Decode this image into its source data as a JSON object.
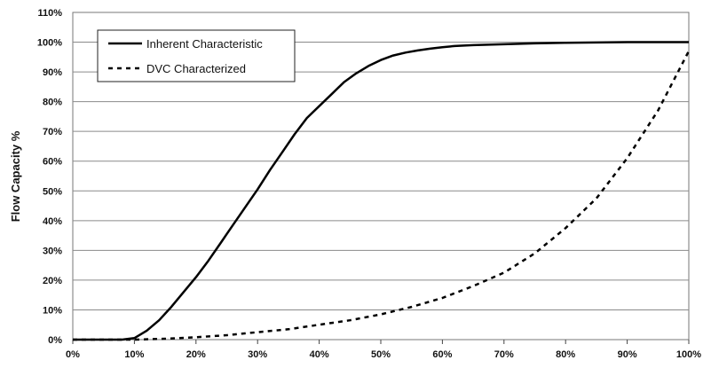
{
  "chart_data": {
    "type": "line",
    "xlabel": "",
    "ylabel": "Flow Capacity %",
    "xlim": [
      0,
      100
    ],
    "ylim": [
      0,
      110
    ],
    "x_ticks": [
      "0%",
      "10%",
      "20%",
      "30%",
      "40%",
      "50%",
      "60%",
      "70%",
      "80%",
      "90%",
      "100%"
    ],
    "y_ticks": [
      "0%",
      "10%",
      "20%",
      "30%",
      "40%",
      "50%",
      "60%",
      "70%",
      "80%",
      "90%",
      "100%",
      "110%"
    ],
    "grid": "horizontal",
    "legend_position": "top-left",
    "series": [
      {
        "name": "Inherent Characteristic",
        "style": "solid",
        "color": "#000000",
        "x": [
          0,
          8,
          10,
          12,
          14,
          16,
          18,
          20,
          22,
          24,
          26,
          28,
          30,
          32,
          34,
          36,
          38,
          40,
          42,
          44,
          46,
          48,
          50,
          52,
          54,
          56,
          58,
          60,
          62,
          65,
          70,
          75,
          80,
          90,
          100
        ],
        "y": [
          0,
          0,
          0.5,
          3,
          6.5,
          11,
          16,
          21,
          26.5,
          32.5,
          38.5,
          44.5,
          50.5,
          57,
          63,
          69,
          74.5,
          78.5,
          82.5,
          86.5,
          89.5,
          92,
          94,
          95.5,
          96.5,
          97.2,
          97.8,
          98.3,
          98.7,
          99,
          99.3,
          99.6,
          99.8,
          100,
          100
        ]
      },
      {
        "name": "DVC Characterized",
        "style": "dashed",
        "color": "#000000",
        "x": [
          0,
          10,
          15,
          20,
          25,
          30,
          35,
          40,
          45,
          50,
          55,
          60,
          65,
          70,
          75,
          80,
          85,
          90,
          95,
          100
        ],
        "y": [
          0,
          0,
          0.3,
          0.8,
          1.5,
          2.5,
          3.5,
          5,
          6.5,
          8.5,
          11,
          14,
          18,
          22.5,
          29,
          37.5,
          47.5,
          61,
          77,
          97
        ]
      }
    ]
  }
}
